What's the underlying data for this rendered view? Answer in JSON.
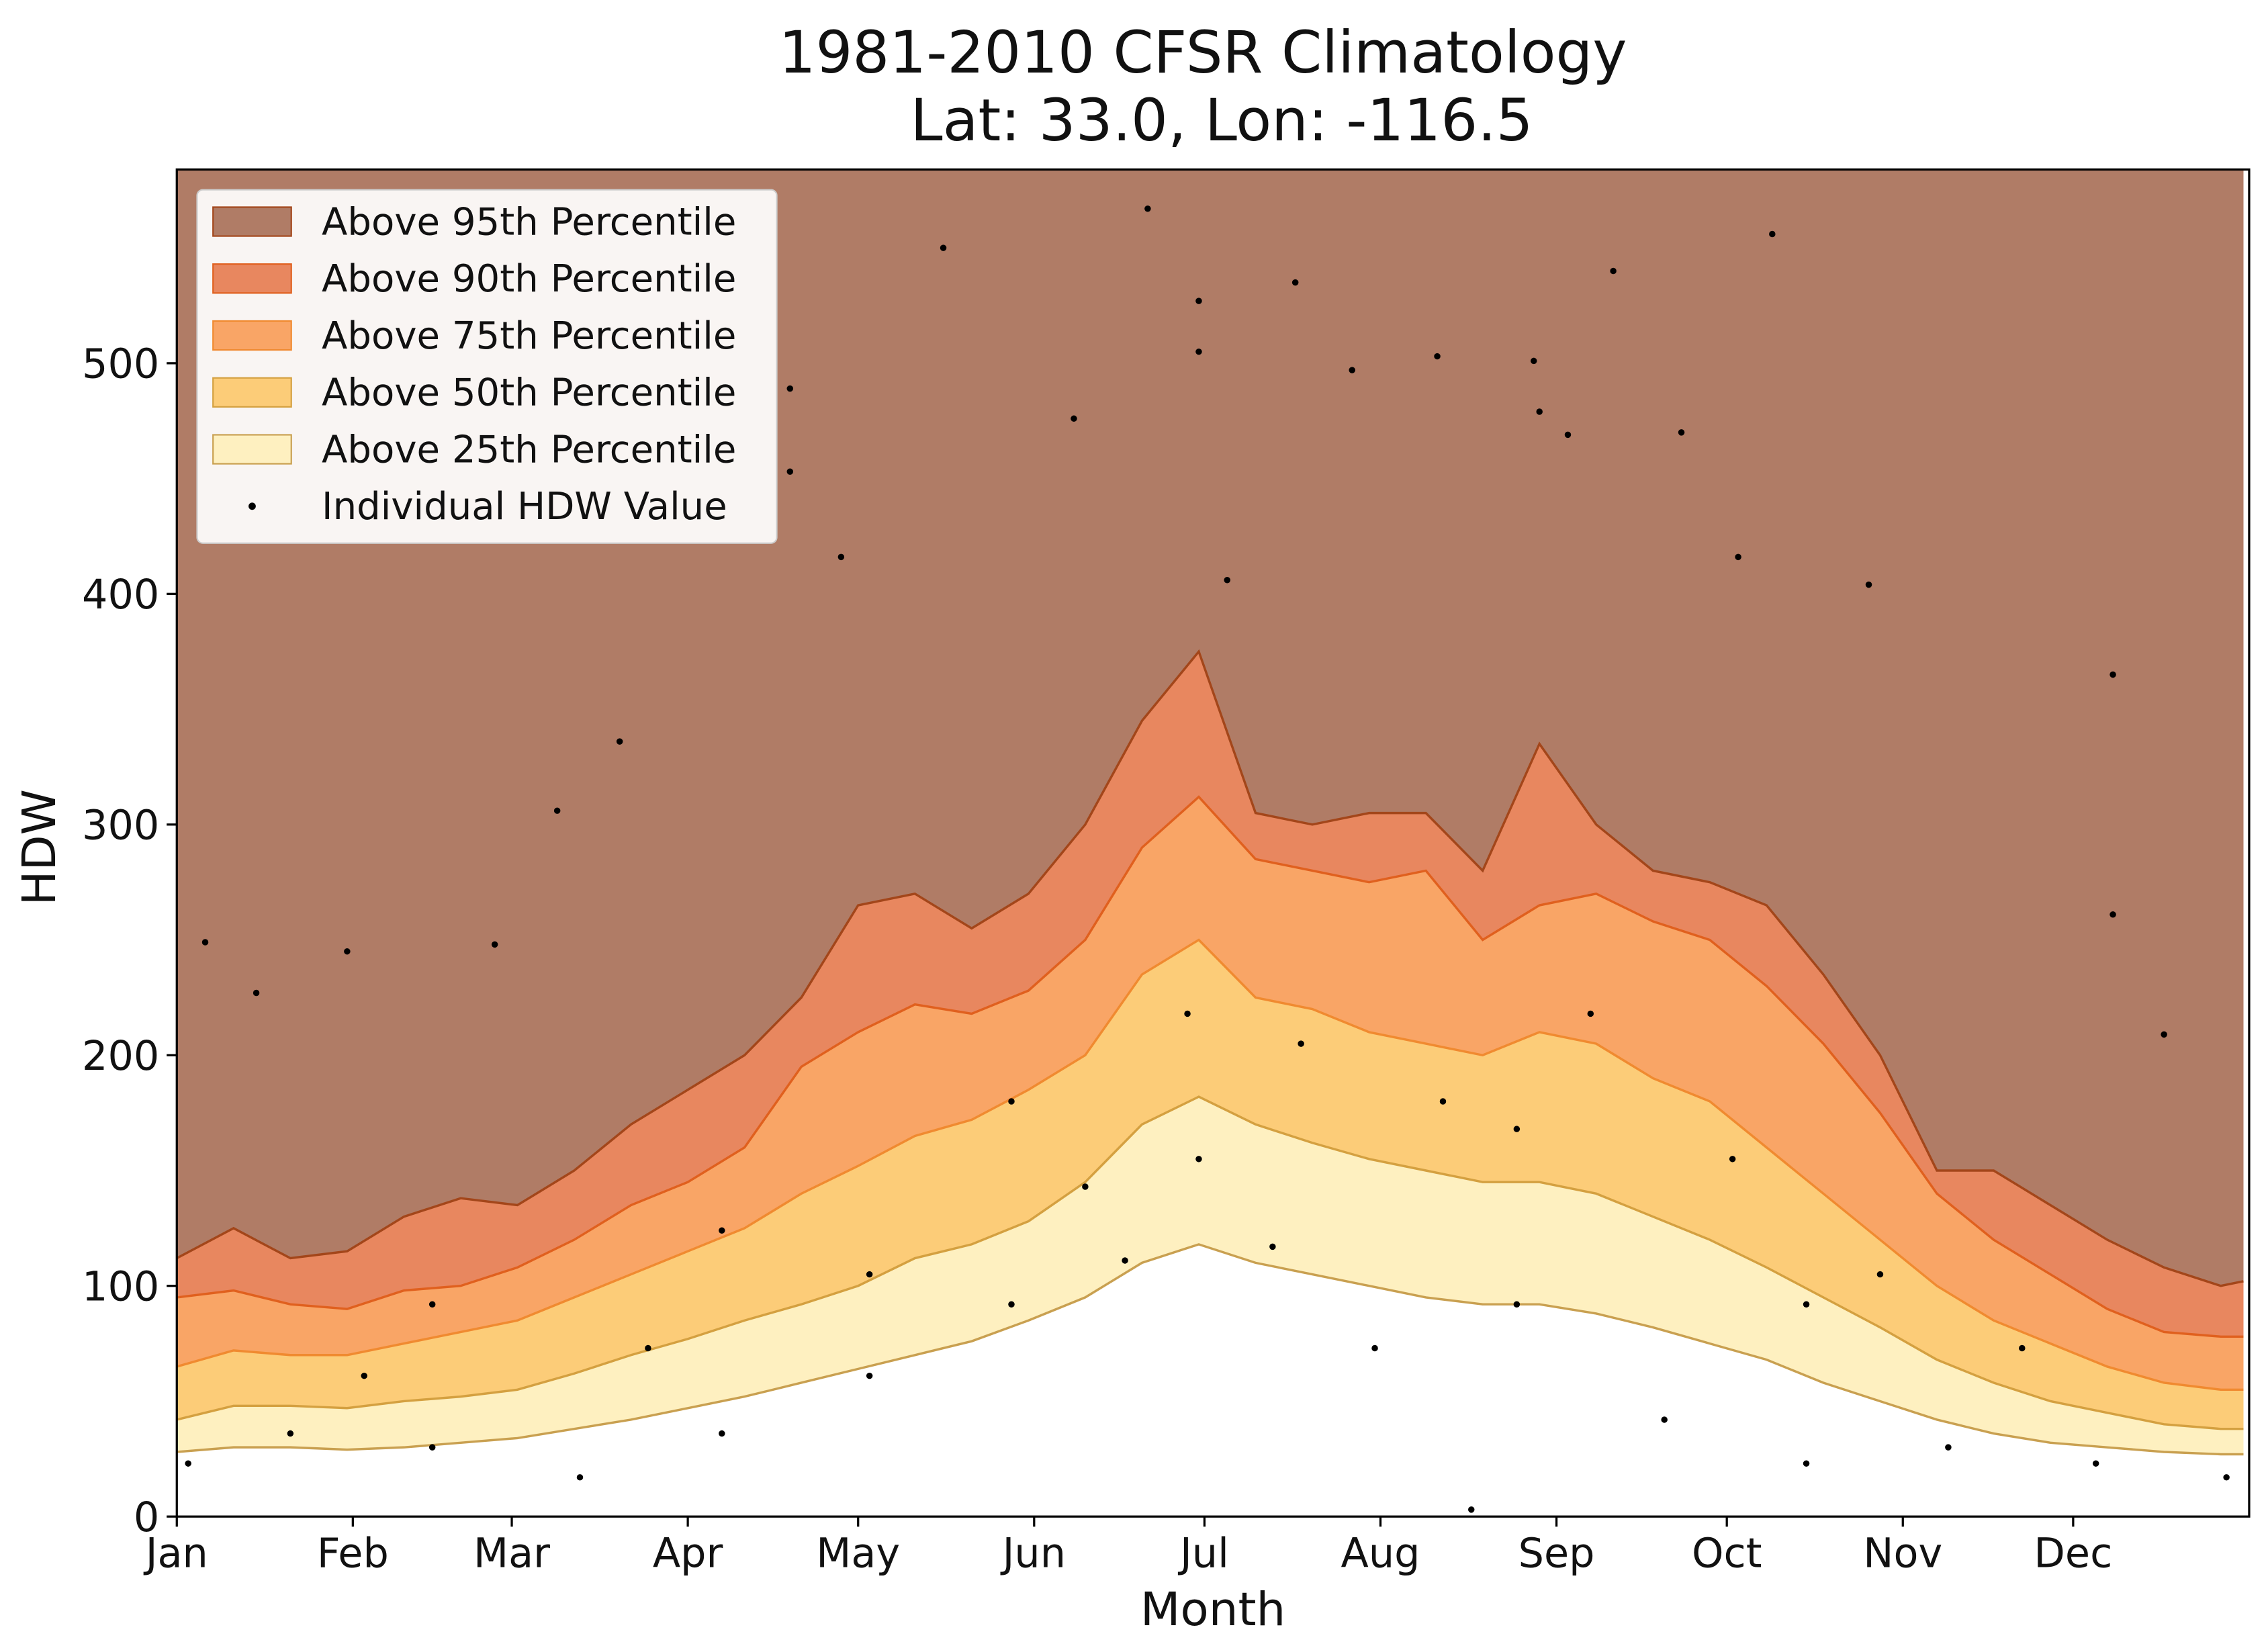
{
  "chart_data": {
    "type": "percentile_area",
    "title": "1981-2010 CFSR Climatology",
    "subtitle": "Lat: 33.0, Lon: -116.5",
    "x_label": "Month",
    "y_label": "HDW",
    "xlim": [
      0,
      365
    ],
    "xticks": [
      {
        "value": 0,
        "label": "Jan"
      },
      {
        "value": 31,
        "label": "Feb"
      },
      {
        "value": 59,
        "label": "Mar"
      },
      {
        "value": 90,
        "label": "Apr"
      },
      {
        "value": 120,
        "label": "May"
      },
      {
        "value": 151,
        "label": "Jun"
      },
      {
        "value": 181,
        "label": "Jul"
      },
      {
        "value": 212,
        "label": "Aug"
      },
      {
        "value": 243,
        "label": "Sep"
      },
      {
        "value": 273,
        "label": "Oct"
      },
      {
        "value": 304,
        "label": "Nov"
      },
      {
        "value": 334,
        "label": "Dec"
      }
    ],
    "ylim": [
      0,
      584
    ],
    "yticks": [
      0,
      100,
      200,
      300,
      400,
      500
    ],
    "legend": "upper left",
    "x": [
      0,
      10,
      20,
      30,
      40,
      50,
      60,
      70,
      80,
      90,
      100,
      110,
      120,
      130,
      140,
      150,
      160,
      170,
      180,
      190,
      200,
      210,
      220,
      230,
      240,
      250,
      260,
      270,
      280,
      290,
      300,
      310,
      320,
      330,
      340,
      350,
      360,
      364
    ],
    "series": [
      {
        "name": "Above 95th Percentile",
        "color": "#b07c66",
        "edge": "#a3461a",
        "values": [
          112,
          125,
          112,
          115,
          130,
          138,
          135,
          150,
          170,
          185,
          200,
          225,
          265,
          270,
          255,
          270,
          300,
          345,
          375,
          305,
          300,
          305,
          305,
          280,
          335,
          300,
          280,
          275,
          265,
          235,
          200,
          150,
          150,
          135,
          120,
          108,
          100,
          102
        ]
      },
      {
        "name": "Above 90th Percentile",
        "color": "#e8875f",
        "edge": "#e0601e",
        "values": [
          95,
          98,
          92,
          90,
          98,
          100,
          108,
          120,
          135,
          145,
          160,
          195,
          210,
          222,
          218,
          228,
          250,
          290,
          312,
          285,
          280,
          275,
          280,
          250,
          265,
          270,
          258,
          250,
          230,
          205,
          175,
          140,
          120,
          105,
          90,
          80,
          78,
          78
        ]
      },
      {
        "name": "Above 75th Percentile",
        "color": "#f9a566",
        "edge": "#f08a30",
        "values": [
          65,
          72,
          70,
          70,
          75,
          80,
          85,
          95,
          105,
          115,
          125,
          140,
          152,
          165,
          172,
          185,
          200,
          235,
          250,
          225,
          220,
          210,
          205,
          200,
          210,
          205,
          190,
          180,
          160,
          140,
          120,
          100,
          85,
          75,
          65,
          58,
          55,
          55
        ]
      },
      {
        "name": "Above 50th Percentile",
        "color": "#fccc78",
        "edge": "#d4a040",
        "values": [
          42,
          48,
          48,
          47,
          50,
          52,
          55,
          62,
          70,
          77,
          85,
          92,
          100,
          112,
          118,
          128,
          145,
          170,
          182,
          170,
          162,
          155,
          150,
          145,
          145,
          140,
          130,
          120,
          108,
          95,
          82,
          68,
          58,
          50,
          45,
          40,
          38,
          38
        ]
      },
      {
        "name": "Above 25th Percentile",
        "color": "#fef0c0",
        "edge": "#c9a050",
        "values": [
          28,
          30,
          30,
          29,
          30,
          32,
          34,
          38,
          42,
          47,
          52,
          58,
          64,
          70,
          76,
          85,
          95,
          110,
          118,
          110,
          105,
          100,
          95,
          92,
          92,
          88,
          82,
          75,
          68,
          58,
          50,
          42,
          36,
          32,
          30,
          28,
          27,
          27
        ]
      }
    ],
    "scatter": {
      "name": "Individual HDW Value",
      "color": "#000000",
      "x": [
        5,
        14,
        30,
        56,
        67,
        78,
        108,
        108,
        135,
        117,
        171,
        180,
        180,
        197,
        207,
        222,
        239,
        240,
        265,
        253,
        281,
        275,
        298,
        341,
        341,
        350,
        228,
        158,
        185,
        245,
        2,
        20,
        45,
        71,
        96,
        122,
        147,
        167,
        180,
        193,
        211,
        236,
        262,
        287,
        312,
        338,
        361,
        45,
        96,
        147,
        178,
        223,
        249,
        274,
        300,
        325,
        33,
        83,
        122,
        160,
        198,
        236,
        287
      ],
      "values": [
        249,
        227,
        245,
        248,
        306,
        336,
        489,
        453,
        550,
        416,
        567,
        527,
        505,
        535,
        497,
        503,
        501,
        479,
        470,
        540,
        556,
        416,
        404,
        365,
        261,
        209,
        3,
        476,
        406,
        469,
        23,
        36,
        30,
        17,
        36,
        61,
        92,
        111,
        155,
        117,
        73,
        92,
        42,
        23,
        30,
        23,
        17,
        92,
        124,
        180,
        218,
        180,
        218,
        155,
        105,
        73,
        61,
        73,
        105,
        143,
        205,
        168,
        92
      ]
    }
  }
}
